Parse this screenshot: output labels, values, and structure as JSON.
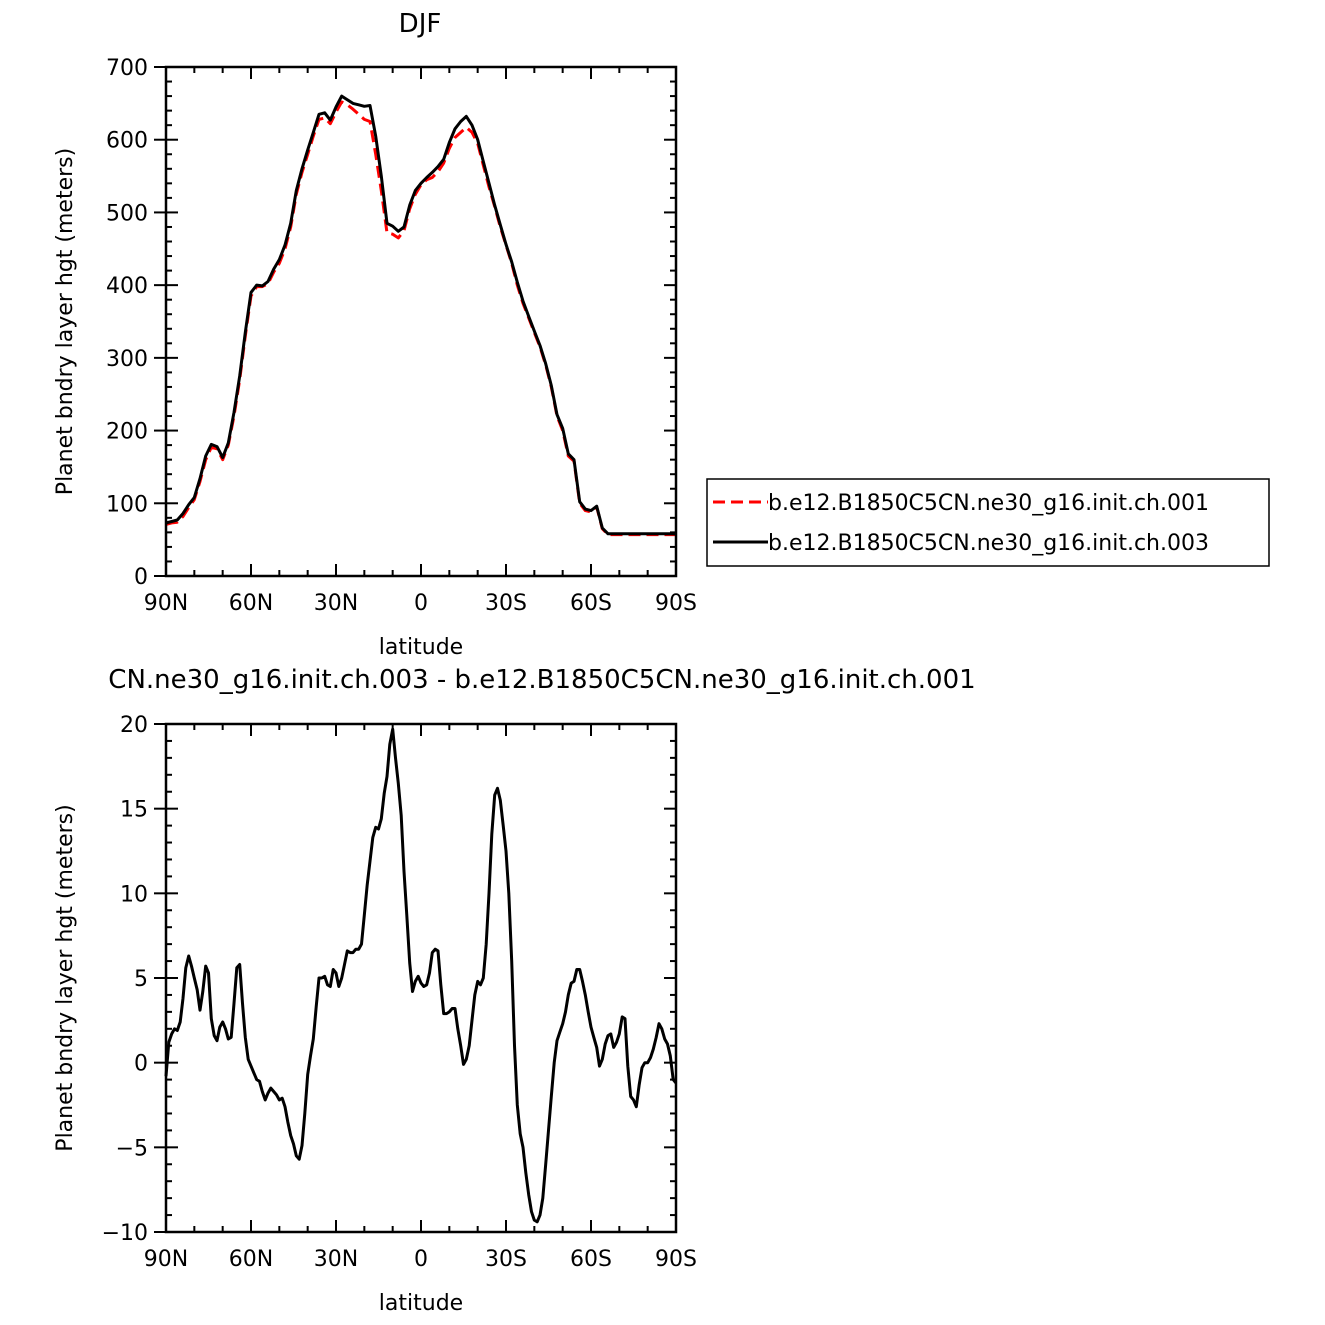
{
  "chart_data": [
    {
      "type": "line",
      "title": "DJF",
      "xlabel": "latitude",
      "ylabel": "Planet bndry layer hgt (meters)",
      "xlim": [
        90,
        -90
      ],
      "ylim": [
        0,
        700
      ],
      "x_tick_values": [
        90,
        60,
        30,
        0,
        -30,
        -60,
        -90
      ],
      "x_tick_labels": [
        "90N",
        "60N",
        "30N",
        "0",
        "30S",
        "60S",
        "90S"
      ],
      "y_ticks": [
        0,
        100,
        200,
        300,
        400,
        500,
        600,
        700
      ],
      "legend_position": "right",
      "series": [
        {
          "name": "b.e12.B1850C5CN.ne30_g16.init.ch.001",
          "color": "#ff0000",
          "dash": "dashed",
          "x": [
            90,
            88,
            86,
            84,
            82,
            80,
            78,
            76,
            74,
            72,
            70,
            68,
            66,
            64,
            62,
            60,
            58,
            56,
            54,
            52,
            50,
            48,
            46,
            44,
            42,
            40,
            38,
            36,
            34,
            32,
            30,
            28,
            26,
            24,
            22,
            20,
            18,
            16,
            14,
            12,
            10,
            8,
            6,
            4,
            2,
            0,
            -2,
            -4,
            -6,
            -8,
            -10,
            -12,
            -14,
            -16,
            -18,
            -20,
            -22,
            -24,
            -26,
            -28,
            -30,
            -32,
            -34,
            -36,
            -38,
            -40,
            -42,
            -44,
            -46,
            -48,
            -50,
            -52,
            -54,
            -56,
            -58,
            -60,
            -62,
            -64,
            -66,
            -68,
            -70,
            -72,
            -74,
            -76,
            -78,
            -80,
            -82,
            -84,
            -86,
            -88,
            -90
          ],
          "y": [
            71,
            73,
            74,
            82,
            94,
            105,
            130,
            160,
            177,
            175,
            160,
            180,
            220,
            270,
            330,
            385,
            398,
            398,
            402,
            418,
            430,
            450,
            480,
            525,
            555,
            580,
            605,
            628,
            630,
            622,
            638,
            652,
            648,
            642,
            635,
            628,
            625,
            580,
            530,
            472,
            470,
            465,
            475,
            505,
            525,
            538,
            545,
            548,
            556,
            568,
            588,
            603,
            610,
            617,
            610,
            595,
            565,
            535,
            508,
            480,
            455,
            430,
            400,
            375,
            355,
            335,
            315,
            290,
            260,
            220,
            200,
            165,
            158,
            100,
            90,
            88,
            95,
            65,
            57,
            57,
            57,
            57,
            57,
            57,
            57,
            57,
            57,
            57,
            57,
            57,
            57
          ]
        },
        {
          "name": "b.e12.B1850C5CN.ne30_g16.init.ch.003",
          "color": "#000000",
          "dash": "solid",
          "x": [
            90,
            88,
            86,
            84,
            82,
            80,
            78,
            76,
            74,
            72,
            70,
            68,
            66,
            64,
            62,
            60,
            58,
            56,
            54,
            52,
            50,
            48,
            46,
            44,
            42,
            40,
            38,
            36,
            34,
            32,
            30,
            28,
            26,
            24,
            22,
            20,
            18,
            16,
            14,
            12,
            10,
            8,
            6,
            4,
            2,
            0,
            -2,
            -4,
            -6,
            -8,
            -10,
            -12,
            -14,
            -16,
            -18,
            -20,
            -22,
            -24,
            -26,
            -28,
            -30,
            -32,
            -34,
            -36,
            -38,
            -40,
            -42,
            -44,
            -46,
            -48,
            -50,
            -52,
            -54,
            -56,
            -58,
            -60,
            -62,
            -64,
            -66,
            -68,
            -70,
            -72,
            -74,
            -76,
            -78,
            -80,
            -82,
            -84,
            -86,
            -88,
            -90
          ],
          "y": [
            73,
            75,
            77,
            86,
            98,
            108,
            134,
            165,
            181,
            178,
            163,
            183,
            225,
            275,
            335,
            390,
            400,
            399,
            405,
            422,
            435,
            455,
            485,
            530,
            560,
            586,
            610,
            635,
            637,
            627,
            645,
            660,
            655,
            650,
            648,
            646,
            647,
            605,
            550,
            485,
            481,
            474,
            480,
            510,
            530,
            540,
            548,
            555,
            563,
            573,
            596,
            615,
            625,
            632,
            620,
            600,
            570,
            540,
            510,
            483,
            456,
            432,
            404,
            378,
            357,
            337,
            317,
            292,
            262,
            222,
            203,
            168,
            160,
            102,
            92,
            90,
            96,
            66,
            58,
            58,
            58,
            58,
            58,
            58,
            58,
            58,
            58,
            58,
            58,
            58,
            58
          ]
        }
      ]
    },
    {
      "type": "line",
      "title": "CN.ne30_g16.init.ch.003 - b.e12.B1850C5CN.ne30_g16.init.ch.001",
      "xlabel": "latitude",
      "ylabel": "Planet bndry layer hgt (meters)",
      "xlim": [
        90,
        -90
      ],
      "ylim": [
        -10,
        20
      ],
      "x_tick_values": [
        90,
        60,
        30,
        0,
        -30,
        -60,
        -90
      ],
      "x_tick_labels": [
        "90N",
        "60N",
        "30N",
        "0",
        "30S",
        "60S",
        "90S"
      ],
      "y_ticks": [
        -10,
        -5,
        0,
        5,
        10,
        15,
        20
      ],
      "y_tick_labels": [
        "−10",
        "−5",
        "0",
        "5",
        "10",
        "15",
        "20"
      ],
      "series": [
        {
          "color": "#000000",
          "dash": "solid",
          "x": [
            90,
            89,
            88,
            87,
            86,
            85,
            84,
            83,
            82,
            81,
            80,
            79,
            78,
            77,
            76,
            75,
            74,
            73,
            72,
            71,
            70,
            69,
            68,
            67,
            66,
            65,
            64,
            63,
            62,
            61,
            60,
            59,
            58,
            57,
            56,
            55,
            54,
            53,
            52,
            51,
            50,
            49,
            48,
            47,
            46,
            45,
            44,
            43,
            42,
            41,
            40,
            39,
            38,
            37,
            36,
            35,
            34,
            33,
            32,
            31,
            30,
            29,
            28,
            27,
            26,
            25,
            24,
            23,
            22,
            21,
            20,
            19,
            18,
            17,
            16,
            15,
            14,
            13,
            12,
            11,
            10,
            9,
            8,
            7,
            6,
            5,
            4,
            3,
            2,
            1,
            0,
            -1,
            -2,
            -3,
            -4,
            -5,
            -6,
            -7,
            -8,
            -9,
            -10,
            -11,
            -12,
            -13,
            -14,
            -15,
            -16,
            -17,
            -18,
            -19,
            -20,
            -21,
            -22,
            -23,
            -24,
            -25,
            -26,
            -27,
            -28,
            -29,
            -30,
            -31,
            -32,
            -33,
            -34,
            -35,
            -36,
            -37,
            -38,
            -39,
            -40,
            -41,
            -42,
            -43,
            -44,
            -45,
            -46,
            -47,
            -48,
            -49,
            -50,
            -51,
            -52,
            -53,
            -54,
            -55,
            -56,
            -57,
            -58,
            -59,
            -60,
            -61,
            -62,
            -63,
            -64,
            -65,
            -66,
            -67,
            -68,
            -69,
            -70,
            -71,
            -72,
            -73,
            -74,
            -75,
            -76,
            -77,
            -78,
            -79,
            -80,
            -81,
            -82,
            -83,
            -84,
            -85,
            -86,
            -87,
            -88,
            -89,
            -90
          ],
          "y": [
            -0.8,
            1.2,
            1.7,
            2.0,
            1.9,
            2.4,
            3.8,
            5.6,
            6.3,
            5.7,
            5.0,
            4.3,
            3.1,
            4.2,
            5.7,
            5.3,
            2.6,
            1.6,
            1.3,
            2.1,
            2.4,
            2.0,
            1.4,
            1.5,
            3.5,
            5.6,
            5.8,
            3.5,
            1.5,
            0.2,
            -0.2,
            -0.6,
            -1.0,
            -1.1,
            -1.7,
            -2.2,
            -1.8,
            -1.5,
            -1.7,
            -1.9,
            -2.2,
            -2.1,
            -2.6,
            -3.5,
            -4.3,
            -4.8,
            -5.5,
            -5.7,
            -4.9,
            -3.0,
            -0.7,
            0.4,
            1.4,
            3.3,
            5.0,
            5.0,
            5.1,
            4.6,
            4.5,
            5.5,
            5.3,
            4.5,
            5.0,
            5.8,
            6.6,
            6.5,
            6.5,
            6.7,
            6.7,
            7.0,
            8.7,
            10.5,
            11.9,
            13.3,
            13.9,
            13.8,
            14.4,
            15.9,
            16.9,
            18.8,
            19.7,
            18.0,
            16.5,
            14.6,
            11.3,
            8.7,
            5.9,
            4.2,
            4.8,
            5.1,
            4.7,
            4.5,
            4.6,
            5.3,
            6.5,
            6.7,
            6.6,
            4.6,
            2.9,
            2.9,
            3.0,
            3.2,
            3.2,
            2.0,
            1.0,
            -0.1,
            0.2,
            1.0,
            2.5,
            4.0,
            4.8,
            4.6,
            5.0,
            7.0,
            10.0,
            13.5,
            15.8,
            16.2,
            15.5,
            14.0,
            12.5,
            10.0,
            6.0,
            1.0,
            -2.5,
            -4.2,
            -5.0,
            -6.5,
            -7.8,
            -8.8,
            -9.3,
            -9.4,
            -9.0,
            -8.0,
            -6.0,
            -4.0,
            -2.0,
            0.0,
            1.3,
            1.8,
            2.3,
            3.0,
            4.0,
            4.7,
            4.8,
            5.5,
            5.5,
            4.8,
            4.0,
            3.0,
            2.1,
            1.5,
            0.9,
            -0.2,
            0.2,
            1.1,
            1.6,
            1.7,
            0.9,
            1.2,
            1.7,
            2.7,
            2.6,
            -0.2,
            -2.0,
            -2.2,
            -2.6,
            -1.3,
            -0.3,
            0.0,
            0.0,
            0.3,
            0.8,
            1.5,
            2.3,
            2.0,
            1.4,
            1.1,
            0.4,
            -1.0,
            -1.2
          ]
        }
      ]
    }
  ]
}
